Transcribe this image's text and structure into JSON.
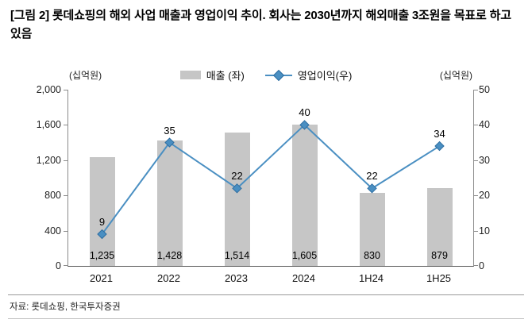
{
  "title": "[그림 2] 롯데쇼핑의 해외 사업 매출과 영업이익 추이. 회사는 2030년까지 해외매출 3조원을 목표로 하고 있음",
  "source": "자료: 롯데쇼핑, 한국투자증권",
  "chart_data": {
    "type": "bar+line",
    "categories": [
      "2021",
      "2022",
      "2023",
      "2024",
      "1H24",
      "1H25"
    ],
    "series": [
      {
        "name": "매출 (좌)",
        "type": "bar",
        "axis": "left",
        "values": [
          1235,
          1428,
          1514,
          1605,
          830,
          879
        ],
        "value_labels": [
          "1,235",
          "1,428",
          "1,514",
          "1,605",
          "830",
          "879"
        ],
        "color": "#c6c6c6"
      },
      {
        "name": "영업이익(우)",
        "type": "line",
        "axis": "right",
        "marker": "diamond",
        "values": [
          9,
          35,
          22,
          40,
          22,
          34
        ],
        "value_labels": [
          "9",
          "35",
          "22",
          "40",
          "22",
          "34"
        ],
        "color": "#4a8fc2",
        "marker_border_color": "#2e6da0"
      }
    ],
    "left_axis": {
      "unit": "(십억원)",
      "min": 0,
      "max": 2000,
      "tick_labels": [
        "2,000",
        "1,600",
        "1,200",
        "800",
        "400",
        "0"
      ]
    },
    "right_axis": {
      "unit": "(십억원)",
      "min": 0,
      "max": 50,
      "tick_labels": [
        "50",
        "40",
        "30",
        "20",
        "10",
        "0"
      ]
    },
    "legend_position": "top",
    "grid": false
  }
}
